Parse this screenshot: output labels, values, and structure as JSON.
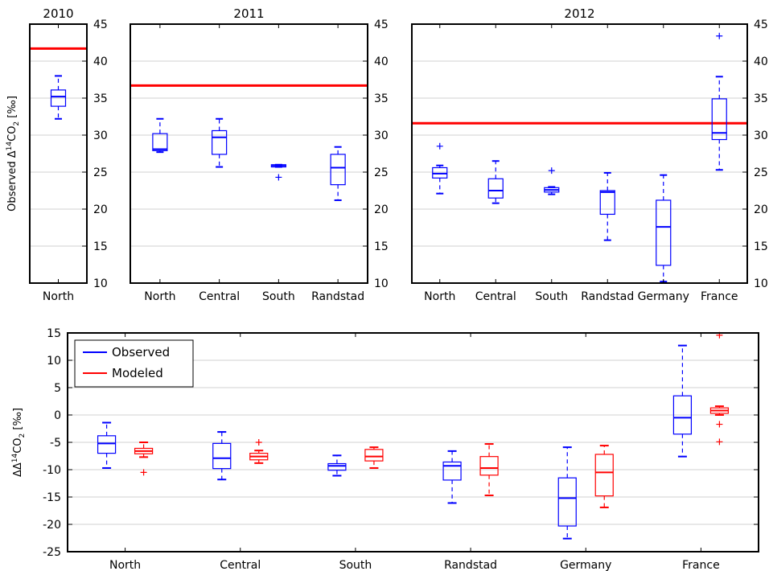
{
  "chart_data": [
    {
      "type": "boxplot",
      "title": "2010",
      "ylabel": "Observed Δ¹⁴CO₂ [‰]",
      "ylim": [
        10,
        45
      ],
      "yticks": [
        10,
        15,
        20,
        25,
        30,
        35,
        40,
        45
      ],
      "grid": "horizontal",
      "reference_line": {
        "value": 41.7,
        "color": "#ff0000"
      },
      "categories": [
        "North"
      ],
      "series": [
        {
          "color": "#0000ff",
          "boxes": [
            {
              "whislo": 32.2,
              "q1": 33.9,
              "med": 35.2,
              "q3": 36.1,
              "whishi": 38.0,
              "fliers": []
            }
          ]
        }
      ]
    },
    {
      "type": "boxplot",
      "title": "2011",
      "ylim": [
        10,
        45
      ],
      "yticks": [
        10,
        15,
        20,
        25,
        30,
        35,
        40,
        45
      ],
      "grid": "horizontal",
      "reference_line": {
        "value": 36.7,
        "color": "#ff0000"
      },
      "categories": [
        "North",
        "Central",
        "South",
        "Randstad"
      ],
      "series": [
        {
          "color": "#0000ff",
          "boxes": [
            {
              "whislo": 27.7,
              "q1": 27.9,
              "med": 28.1,
              "q3": 30.2,
              "whishi": 32.2,
              "fliers": []
            },
            {
              "whislo": 25.7,
              "q1": 27.4,
              "med": 29.7,
              "q3": 30.6,
              "whishi": 32.2,
              "fliers": []
            },
            {
              "whislo": 25.7,
              "q1": 25.7,
              "med": 25.9,
              "q3": 26.0,
              "whishi": 26.0,
              "fliers": [
                24.3
              ]
            },
            {
              "whislo": 21.2,
              "q1": 23.3,
              "med": 25.6,
              "q3": 27.4,
              "whishi": 28.4,
              "fliers": []
            }
          ]
        }
      ]
    },
    {
      "type": "boxplot",
      "title": "2012",
      "ylim": [
        10,
        45
      ],
      "yticks": [
        10,
        15,
        20,
        25,
        30,
        35,
        40,
        45
      ],
      "grid": "horizontal",
      "reference_line": {
        "value": 31.6,
        "color": "#ff0000"
      },
      "categories": [
        "North",
        "Central",
        "South",
        "Randstad",
        "Germany",
        "France"
      ],
      "series": [
        {
          "color": "#0000ff",
          "boxes": [
            {
              "whislo": 22.1,
              "q1": 24.2,
              "med": 24.8,
              "q3": 25.6,
              "whishi": 25.9,
              "fliers": [
                28.5
              ]
            },
            {
              "whislo": 20.8,
              "q1": 21.5,
              "med": 22.5,
              "q3": 24.1,
              "whishi": 26.5,
              "fliers": []
            },
            {
              "whislo": 22.0,
              "q1": 22.3,
              "med": 22.6,
              "q3": 22.9,
              "whishi": 23.0,
              "fliers": [
                25.2
              ]
            },
            {
              "whislo": 15.8,
              "q1": 19.3,
              "med": 22.3,
              "q3": 22.5,
              "whishi": 24.9,
              "fliers": []
            },
            {
              "whislo": 10.2,
              "q1": 12.4,
              "med": 17.6,
              "q3": 21.2,
              "whishi": 24.6,
              "fliers": []
            },
            {
              "whislo": 25.3,
              "q1": 29.4,
              "med": 30.3,
              "q3": 34.9,
              "whishi": 37.9,
              "fliers": [
                43.4
              ]
            }
          ]
        }
      ]
    },
    {
      "type": "boxplot",
      "ylabel": "ΔΔ¹⁴CO₂ [‰]",
      "ylim": [
        -25,
        15
      ],
      "yticks": [
        -25,
        -20,
        -15,
        -10,
        -5,
        0,
        5,
        10,
        15
      ],
      "grid": "horizontal",
      "legend": "top-left",
      "categories": [
        "North",
        "Central",
        "South",
        "Randstad",
        "Germany",
        "France"
      ],
      "series": [
        {
          "name": "Observed",
          "color": "#0000ff",
          "boxes": [
            {
              "whislo": -9.7,
              "q1": -7.0,
              "med": -5.2,
              "q3": -3.8,
              "whishi": -1.4,
              "fliers": []
            },
            {
              "whislo": -11.8,
              "q1": -9.8,
              "med": -7.9,
              "q3": -5.2,
              "whishi": -3.1,
              "fliers": []
            },
            {
              "whislo": -11.1,
              "q1": -10.1,
              "med": -9.3,
              "q3": -8.9,
              "whishi": -7.4,
              "fliers": []
            },
            {
              "whislo": -16.1,
              "q1": -11.9,
              "med": -9.3,
              "q3": -8.6,
              "whishi": -6.6,
              "fliers": []
            },
            {
              "whislo": -22.6,
              "q1": -20.3,
              "med": -15.2,
              "q3": -11.5,
              "whishi": -5.9,
              "fliers": []
            },
            {
              "whislo": -7.6,
              "q1": -3.5,
              "med": -0.5,
              "q3": 3.5,
              "whishi": 12.7,
              "fliers": []
            }
          ]
        },
        {
          "name": "Modeled",
          "color": "#ff0000",
          "boxes": [
            {
              "whislo": -7.7,
              "q1": -7.1,
              "med": -6.6,
              "q3": -6.1,
              "whishi": -5.0,
              "fliers": [
                -10.5
              ]
            },
            {
              "whislo": -8.8,
              "q1": -8.2,
              "med": -7.6,
              "q3": -7.0,
              "whishi": -6.5,
              "fliers": [
                -5.0
              ]
            },
            {
              "whislo": -9.7,
              "q1": -8.4,
              "med": -7.6,
              "q3": -6.3,
              "whishi": -5.9,
              "fliers": []
            },
            {
              "whislo": -14.7,
              "q1": -11.0,
              "med": -9.7,
              "q3": -7.6,
              "whishi": -5.3,
              "fliers": []
            },
            {
              "whislo": -16.9,
              "q1": -14.8,
              "med": -10.5,
              "q3": -7.2,
              "whishi": -5.6,
              "fliers": []
            },
            {
              "whislo": 0.0,
              "q1": 0.3,
              "med": 0.8,
              "q3": 1.3,
              "whishi": 1.6,
              "fliers": [
                -1.7,
                -4.9,
                14.6
              ]
            }
          ]
        }
      ]
    }
  ]
}
